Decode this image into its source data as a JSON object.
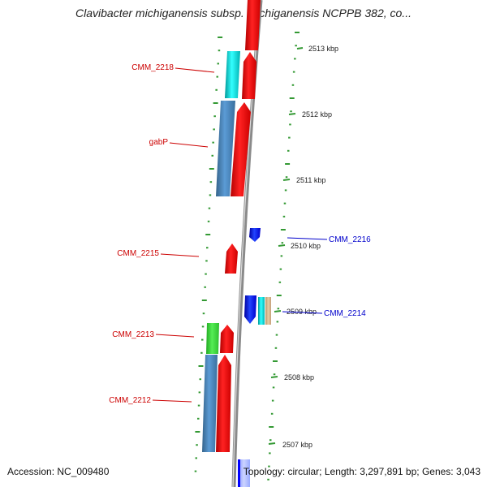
{
  "title": "Clavibacter michiganensis subsp. michiganensis NCPPB 382, co...",
  "accession": "Accession: NC_009480",
  "topology": "Topology: circular; Length: 3,297,891 bp; Genes: 3,043",
  "colors": {
    "backbone": "#8a8a8a",
    "tick": "#339933",
    "forward_gene": "#ff0000",
    "reverse_gene": "#0000ff",
    "cds_steelblue": "#4682b4",
    "cds_cyan": "#00cccc",
    "cds_green": "#33cc33",
    "cds_tan": "#d2b48c",
    "label_forward": "#cc0000",
    "label_reverse": "#0000cc"
  },
  "scale_labels": [
    {
      "kbp": 2513,
      "text": "2513 kbp"
    },
    {
      "kbp": 2512,
      "text": "2512 kbp"
    },
    {
      "kbp": 2511,
      "text": "2511 kbp"
    },
    {
      "kbp": 2510,
      "text": "2510 kbp"
    },
    {
      "kbp": 2509,
      "text": "2509 kbp"
    },
    {
      "kbp": 2508,
      "text": "2508 kbp"
    },
    {
      "kbp": 2507,
      "text": "2507 kbp"
    }
  ],
  "gene_labels": [
    {
      "text": "CMM_2218",
      "strand": "forward"
    },
    {
      "text": "gabP",
      "strand": "forward"
    },
    {
      "text": "CMM_2215",
      "strand": "forward"
    },
    {
      "text": "CMM_2216",
      "strand": "reverse"
    },
    {
      "text": "CMM_2214",
      "strand": "reverse"
    },
    {
      "text": "CMM_2213",
      "strand": "forward"
    },
    {
      "text": "CMM_2212",
      "strand": "forward"
    }
  ]
}
